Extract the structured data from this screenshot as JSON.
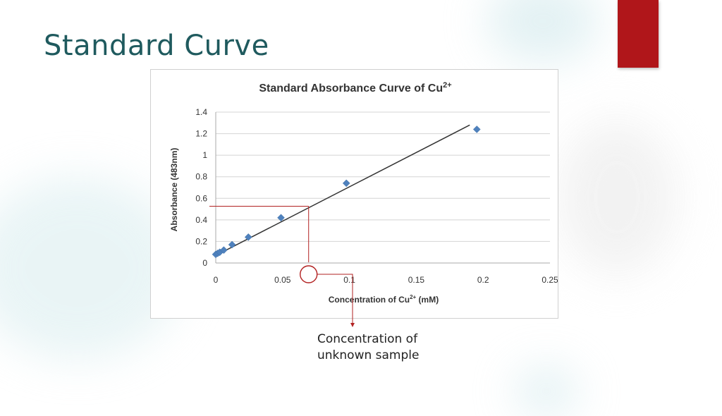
{
  "slide": {
    "title": "Standard Curve",
    "accent_color": "#b0161a",
    "callout_lines": [
      "Concentration of",
      "unknown sample"
    ],
    "annotation_color": "#b22222"
  },
  "chart_data": {
    "type": "scatter",
    "title": "Standard Absorbance Curve of  Cu",
    "title_superscript": "2+",
    "xlabel": "Concentration of Cu",
    "xlabel_superscript": "2+",
    "xlabel_suffix": " (mM)",
    "ylabel": "Absorbance (483nm)",
    "xlim": [
      0,
      0.25
    ],
    "ylim": [
      0,
      1.4
    ],
    "x_ticks": [
      0,
      0.05,
      0.1,
      0.15,
      0.2,
      0.25
    ],
    "x_tick_labels": [
      "0",
      "0.05",
      "0.1",
      "0.15",
      "0.2",
      "0.25"
    ],
    "y_ticks": [
      0,
      0.2,
      0.4,
      0.6,
      0.8,
      1,
      1.2,
      1.4
    ],
    "y_tick_labels": [
      "0",
      "0.2",
      "0.4",
      "0.6",
      "0.8",
      "1",
      "1.2",
      "1.4"
    ],
    "grid": true,
    "legend": "none",
    "marker_color": "#4f81bd",
    "trendline_color": "#333333",
    "series": [
      {
        "x": [
          0.0,
          0.0015,
          0.003,
          0.006,
          0.0122,
          0.0244,
          0.0488,
          0.0977,
          0.1953
        ],
        "y": [
          0.08,
          0.09,
          0.1,
          0.12,
          0.17,
          0.24,
          0.42,
          0.74,
          1.24
        ]
      }
    ],
    "trendline": {
      "x": [
        0,
        0.19
      ],
      "y": [
        0.07,
        1.28
      ]
    },
    "unknown_sample": {
      "x": 0.07,
      "y": 0.52
    }
  }
}
